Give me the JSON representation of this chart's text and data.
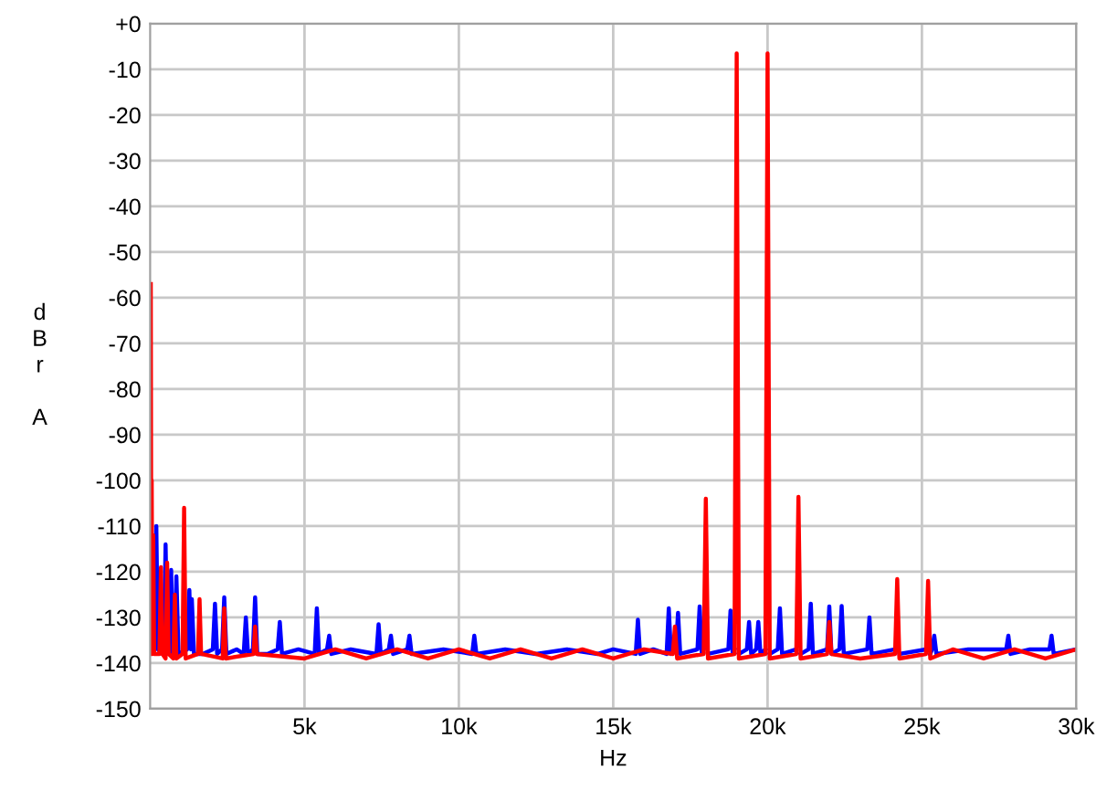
{
  "chart_data": {
    "type": "line",
    "xlabel": "Hz",
    "ylabel": "d\nB\nr\n\nA",
    "xlim": [
      0,
      30000
    ],
    "ylim": [
      -150,
      0
    ],
    "xticks": [
      {
        "value": 5000,
        "label": "5k"
      },
      {
        "value": 10000,
        "label": "10k"
      },
      {
        "value": 15000,
        "label": "15k"
      },
      {
        "value": 20000,
        "label": "20k"
      },
      {
        "value": 25000,
        "label": "25k"
      },
      {
        "value": 30000,
        "label": "30k"
      }
    ],
    "yticks": [
      {
        "value": 0,
        "label": "+0"
      },
      -10,
      -20,
      -30,
      -40,
      -50,
      -60,
      -70,
      -80,
      -90,
      -100,
      -110,
      -120,
      -130,
      -140,
      -150
    ],
    "grid": true,
    "line_style": "solid",
    "marker": "none",
    "series": [
      {
        "color": "#0000ff",
        "x": [
          20,
          100,
          150,
          200,
          250,
          400,
          440,
          500,
          560,
          620,
          680,
          740,
          790,
          850,
          920,
          1200,
          1270,
          1320,
          1350,
          1420,
          1700,
          2030,
          2100,
          2170,
          2330,
          2400,
          2470,
          2800,
          3030,
          3100,
          3170,
          3330,
          3400,
          3470,
          3800,
          4130,
          4200,
          4270,
          4800,
          5330,
          5400,
          5470,
          5730,
          5800,
          5870,
          6500,
          7330,
          7400,
          7470,
          7730,
          7800,
          7870,
          8330,
          8400,
          8470,
          9500,
          10430,
          10500,
          10570,
          11500,
          12500,
          13500,
          14500,
          15000,
          15730,
          15800,
          15870,
          16300,
          16730,
          16800,
          16870,
          17030,
          17100,
          17170,
          17730,
          17800,
          17870,
          17930,
          18000,
          18070,
          18730,
          18800,
          18870,
          18930,
          19000,
          19070,
          19330,
          19400,
          19470,
          19630,
          19700,
          19770,
          19930,
          20000,
          20070,
          20330,
          20400,
          20470,
          20930,
          21000,
          21070,
          21330,
          21400,
          21470,
          21930,
          22000,
          22070,
          22330,
          22400,
          22470,
          23230,
          23300,
          23370,
          24130,
          24200,
          24270,
          25130,
          25200,
          25270,
          25330,
          25400,
          25470,
          26500,
          27730,
          27800,
          27870,
          28500,
          29130,
          29200,
          29270,
          30000
        ],
        "values": [
          -132,
          -136,
          -137,
          -110,
          -137,
          -138,
          -137,
          -114,
          -137,
          -138,
          -119.6,
          -138,
          -137,
          -121,
          -138,
          -137,
          -124,
          -137,
          -126,
          -138,
          -138,
          -137,
          -127,
          -138,
          -137,
          -125.6,
          -138,
          -137,
          -138,
          -130,
          -138,
          -137,
          -125.6,
          -138,
          -138,
          -137,
          -131,
          -138,
          -137,
          -138,
          -128,
          -138,
          -137,
          -134,
          -138,
          -137,
          -138,
          -131.5,
          -138,
          -137,
          -134,
          -138,
          -137,
          -134,
          -138,
          -137,
          -138,
          -134,
          -138,
          -137,
          -138,
          -137,
          -138,
          -137,
          -138,
          -130.5,
          -138,
          -137,
          -138,
          -128,
          -138,
          -137,
          -129,
          -138,
          -137,
          -127.6,
          -138,
          -137,
          null,
          -138,
          -137,
          -128.5,
          -138,
          -137,
          null,
          -138,
          -137,
          -131,
          -138,
          -137,
          -131,
          -138,
          -137,
          null,
          -138,
          -137,
          -128,
          -138,
          -137,
          null,
          -138,
          -137,
          -127,
          -138,
          -137,
          -127.6,
          -138,
          -137,
          -127.5,
          -138,
          -137,
          -130,
          -138,
          -137,
          null,
          -138,
          -137,
          null,
          -138,
          -137,
          -134,
          -138,
          -137,
          -137,
          -134,
          -138,
          -137,
          -137,
          -134,
          -138,
          -137
        ]
      },
      {
        "color": "#ff0000",
        "x": [
          20,
          40,
          50,
          70,
          100,
          130,
          300,
          350,
          400,
          500,
          550,
          600,
          750,
          800,
          850,
          1050,
          1100,
          1150,
          1550,
          1600,
          1650,
          2350,
          2400,
          2450,
          3350,
          3400,
          3450,
          5000,
          6000,
          7000,
          8000,
          9000,
          10000,
          11000,
          12000,
          13000,
          14000,
          15000,
          16000,
          16930,
          17000,
          17070,
          17930,
          18000,
          18070,
          18930,
          19000,
          19070,
          19930,
          20000,
          20070,
          20930,
          21000,
          21070,
          21930,
          22000,
          22070,
          23000,
          24130,
          24200,
          24270,
          25130,
          25200,
          25270,
          26000,
          27000,
          28000,
          29000,
          30000
        ],
        "values": [
          -57,
          -138,
          -100,
          -138,
          -112,
          -138,
          -138,
          -119,
          -138,
          -139,
          -118,
          -138,
          -139,
          -125,
          -139,
          -138,
          -106,
          -139,
          -138,
          -126,
          -138,
          -139,
          -128,
          -139,
          -138,
          -132,
          -138,
          -139,
          -137,
          -139,
          -137,
          -139,
          -137,
          -139,
          -137,
          -139,
          -137,
          -139,
          -137,
          -138,
          -132,
          -139,
          -138,
          -104,
          -139,
          -138,
          -6.5,
          -139,
          -138,
          -6.5,
          -139,
          -138,
          -103.6,
          -139,
          -138,
          -131,
          -138,
          -139,
          -138,
          -121.6,
          -139,
          -138,
          -122,
          -139,
          -137,
          -139,
          -137,
          -139,
          -137
        ]
      }
    ]
  }
}
